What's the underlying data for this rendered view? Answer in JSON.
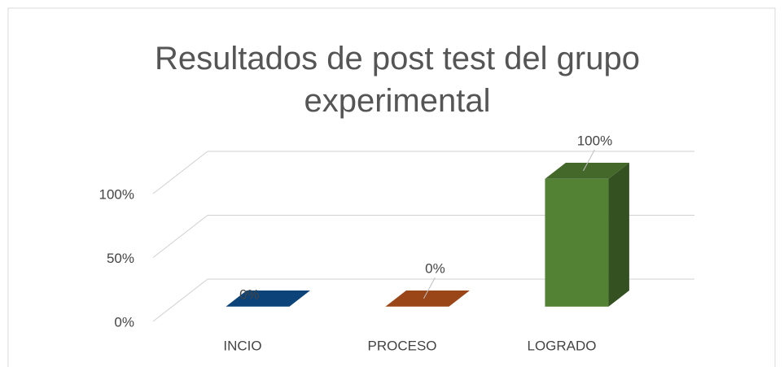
{
  "chart_data": {
    "type": "bar3d",
    "title": "Resultados de post test del grupo experimental",
    "categories": [
      "INCIO",
      "PROCESO",
      "LOGRADO"
    ],
    "values": [
      0,
      0,
      100
    ],
    "value_labels": [
      "0%",
      "0%",
      "100%"
    ],
    "colors": [
      "#0f5496",
      "#c0581f",
      "#548235"
    ],
    "ylim": [
      0,
      100
    ],
    "yticks": [
      {
        "value": 0,
        "label": "0%"
      },
      {
        "value": 50,
        "label": "50%"
      },
      {
        "value": 100,
        "label": "100%"
      }
    ],
    "grid": true
  }
}
